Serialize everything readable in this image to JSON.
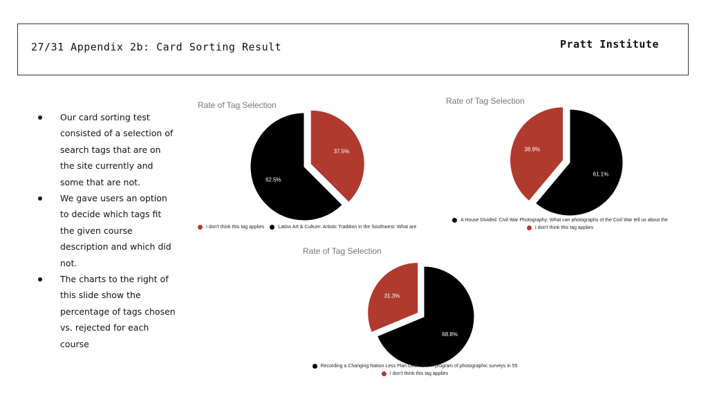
{
  "header": {
    "title": "27/31 Appendix 2b: Card Sorting Result",
    "org": "Pratt Institute"
  },
  "bullets": [
    "Our card sorting test consisted of a selection of search tags that are on the site currently and some that are not.",
    "We gave users an option to decide which tags fit the given course description and which did not.",
    "The charts to the right of this slide show the percentage of tags chosen vs. rejected for each course"
  ],
  "colors": {
    "red": "#B03A2E",
    "black": "#000000"
  },
  "chart_data": [
    {
      "type": "pie",
      "title": "Rate of Tag Selection",
      "legend_placement": "bottom",
      "slices": [
        {
          "label": "I don't think this tag applies",
          "value": 37.5,
          "display": "37.5%",
          "color": "#B03A2E",
          "exploded": true
        },
        {
          "label": "Latino Art & Culture: Artistic Tradition in the Southwest:  What are",
          "value": 62.5,
          "display": "62.5%",
          "color": "#000000",
          "exploded": false
        }
      ]
    },
    {
      "type": "pie",
      "title": "Rate of Tag Selection",
      "legend_placement": "bottom",
      "slices": [
        {
          "label": "A House Divided: Civil War Photography: What can photographs of the Civil War tell us about the",
          "value": 61.1,
          "display": "61.1%",
          "color": "#000000",
          "exploded": false
        },
        {
          "label": "I don't think this tag applies",
          "value": 38.9,
          "display": "38.9%",
          "color": "#B03A2E",
          "exploded": true
        }
      ]
    },
    {
      "type": "pie",
      "title": "Rate of Tag Selection",
      "legend_placement": "bottom",
      "slices": [
        {
          "label": "Recording a Changing Nation Less Plan Overview: A program of photographic surveys in 55",
          "value": 68.8,
          "display": "68.8%",
          "color": "#000000",
          "exploded": false
        },
        {
          "label": "I don't think this tag applies",
          "value": 31.3,
          "display": "31.3%",
          "color": "#B03A2E",
          "exploded": true
        }
      ]
    }
  ]
}
